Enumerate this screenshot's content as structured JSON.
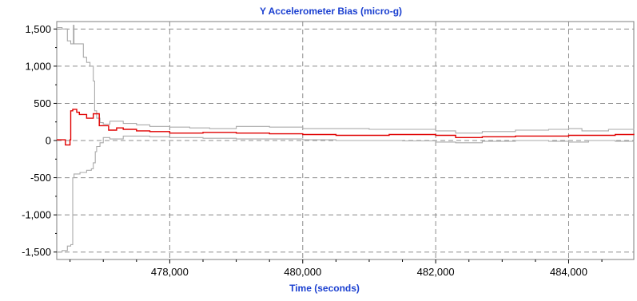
{
  "chart_data": {
    "type": "line",
    "title": "Y Accelerometer Bias (micro-g)",
    "xlabel": "Time (seconds)",
    "ylabel": "",
    "xlim": [
      476300,
      484980
    ],
    "ylim": [
      -1600,
      1600
    ],
    "x_ticks": [
      478000,
      480000,
      482000,
      484000
    ],
    "x_tick_labels": [
      "478,000",
      "480,000",
      "482,000",
      "484,000"
    ],
    "y_ticks": [
      1500,
      1000,
      500,
      0,
      -500,
      -1000,
      -1500
    ],
    "y_tick_labels": [
      "1,500",
      "1,000",
      "500",
      "0",
      "-500",
      "-1,000",
      "-1,500"
    ],
    "grid": true,
    "grid_style": "dashed",
    "title_color": "#1a3fd0",
    "xlabel_color": "#1a3fd0",
    "series": [
      {
        "color": "#e00000",
        "points": [
          [
            476300,
            10
          ],
          [
            476400,
            10
          ],
          [
            476430,
            -60
          ],
          [
            476490,
            -60
          ],
          [
            476500,
            10
          ],
          [
            476510,
            400
          ],
          [
            476540,
            420
          ],
          [
            476600,
            380
          ],
          [
            476640,
            350
          ],
          [
            476700,
            350
          ],
          [
            476750,
            300
          ],
          [
            476830,
            300
          ],
          [
            476850,
            360
          ],
          [
            476920,
            360
          ],
          [
            476940,
            200
          ],
          [
            477050,
            200
          ],
          [
            477080,
            140
          ],
          [
            477200,
            170
          ],
          [
            477300,
            150
          ],
          [
            477500,
            130
          ],
          [
            477700,
            120
          ],
          [
            478000,
            100
          ],
          [
            478200,
            100
          ],
          [
            478500,
            110
          ],
          [
            479000,
            100
          ],
          [
            479500,
            90
          ],
          [
            480000,
            80
          ],
          [
            480500,
            70
          ],
          [
            481000,
            70
          ],
          [
            481300,
            80
          ],
          [
            481700,
            80
          ],
          [
            482000,
            70
          ],
          [
            482300,
            40
          ],
          [
            482700,
            50
          ],
          [
            483200,
            60
          ],
          [
            483700,
            60
          ],
          [
            484000,
            70
          ],
          [
            484300,
            70
          ],
          [
            484700,
            80
          ],
          [
            484980,
            90
          ]
        ]
      },
      {
        "color": "#aaaaaa",
        "points": [
          [
            476300,
            1520
          ],
          [
            476380,
            1500
          ],
          [
            476460,
            1340
          ],
          [
            476510,
            1300
          ],
          [
            476550,
            1550
          ],
          [
            476560,
            1300
          ],
          [
            476600,
            1300
          ],
          [
            476700,
            1120
          ],
          [
            476750,
            1050
          ],
          [
            476800,
            1000
          ],
          [
            476850,
            800
          ],
          [
            476870,
            400
          ],
          [
            476900,
            300
          ],
          [
            476950,
            240
          ],
          [
            477000,
            220
          ],
          [
            477100,
            260
          ],
          [
            477300,
            230
          ],
          [
            477500,
            210
          ],
          [
            477700,
            190
          ],
          [
            478000,
            180
          ],
          [
            478300,
            170
          ],
          [
            478600,
            160
          ],
          [
            479000,
            190
          ],
          [
            479500,
            180
          ],
          [
            480000,
            160
          ],
          [
            480500,
            160
          ],
          [
            481000,
            150
          ],
          [
            481500,
            150
          ],
          [
            482000,
            130
          ],
          [
            482300,
            100
          ],
          [
            482700,
            120
          ],
          [
            483200,
            140
          ],
          [
            483700,
            150
          ],
          [
            484000,
            160
          ],
          [
            484200,
            130
          ],
          [
            484600,
            150
          ],
          [
            484980,
            160
          ]
        ]
      },
      {
        "color": "#aaaaaa",
        "points": [
          [
            476300,
            -1500
          ],
          [
            476380,
            -1480
          ],
          [
            476460,
            -1420
          ],
          [
            476510,
            -1400
          ],
          [
            476540,
            -500
          ],
          [
            476560,
            -450
          ],
          [
            476650,
            -430
          ],
          [
            476750,
            -400
          ],
          [
            476820,
            -380
          ],
          [
            476850,
            -300
          ],
          [
            476880,
            -150
          ],
          [
            476900,
            -80
          ],
          [
            476950,
            -30
          ],
          [
            477000,
            40
          ],
          [
            477100,
            20
          ],
          [
            477300,
            60
          ],
          [
            477500,
            60
          ],
          [
            477700,
            50
          ],
          [
            478000,
            40
          ],
          [
            478500,
            30
          ],
          [
            479000,
            20
          ],
          [
            479500,
            20
          ],
          [
            480000,
            10
          ],
          [
            480500,
            0
          ],
          [
            481000,
            0
          ],
          [
            481500,
            -5
          ],
          [
            482000,
            -20
          ],
          [
            482300,
            -30
          ],
          [
            482700,
            -10
          ],
          [
            483200,
            0
          ],
          [
            483700,
            -10
          ],
          [
            484000,
            -20
          ],
          [
            484300,
            0
          ],
          [
            484700,
            -10
          ],
          [
            484980,
            0
          ]
        ]
      }
    ]
  }
}
